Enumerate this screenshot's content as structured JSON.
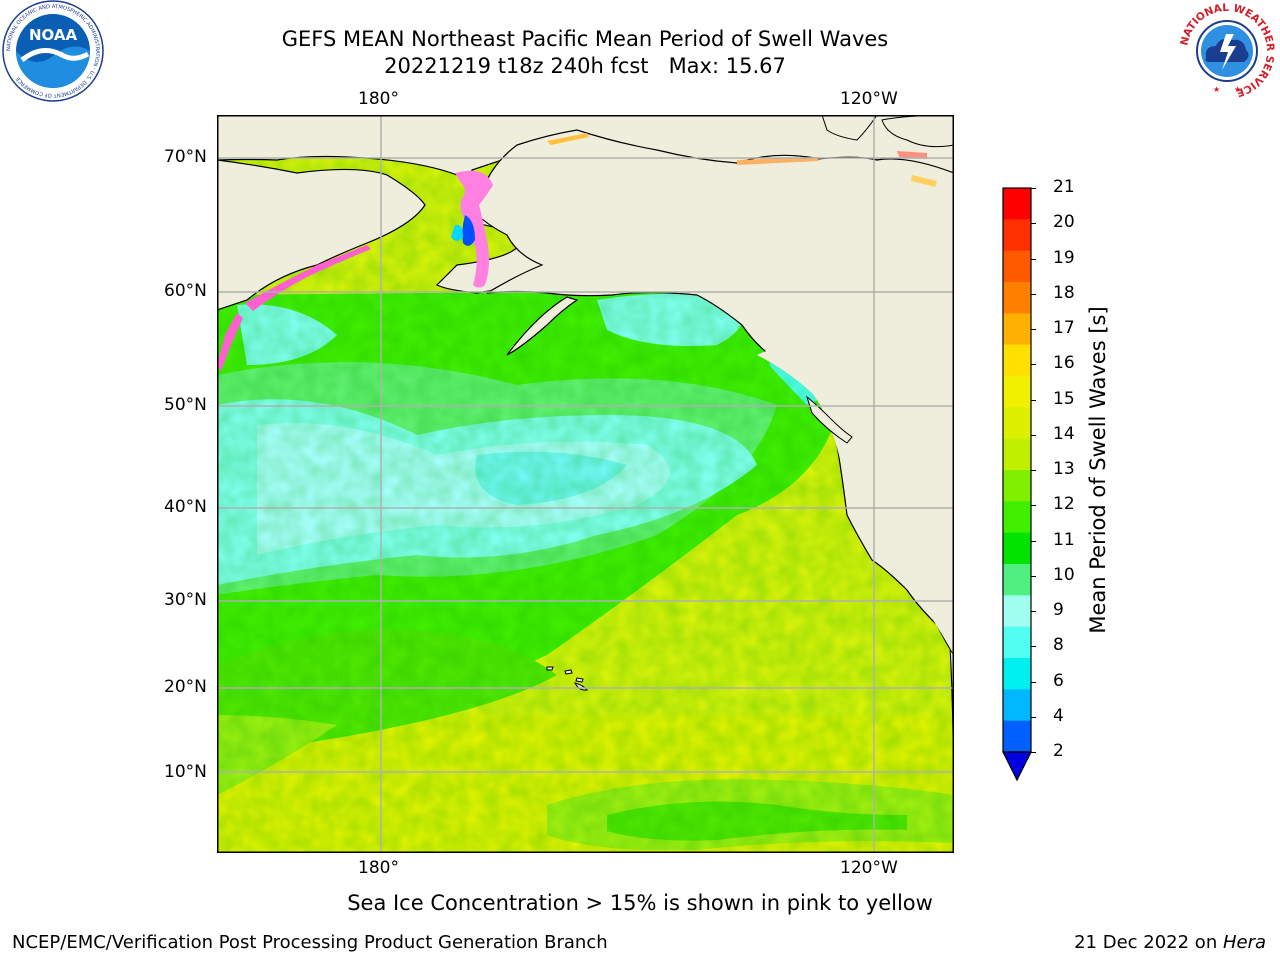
{
  "title": {
    "line1": "GEFS MEAN Northeast Pacific Mean Period of Swell Waves",
    "line2": "20221219 t18z 240h fcst   Max: 15.67"
  },
  "map": {
    "top_lon_labels": [
      "180°",
      "120°W"
    ],
    "bottom_lon_labels": [
      "180°",
      "120°W"
    ],
    "lat_labels": [
      "70°N",
      "60°N",
      "50°N",
      "40°N",
      "30°N",
      "20°N",
      "10°N"
    ]
  },
  "colorbar": {
    "label": "Mean Period of Swell Waves [s]",
    "ticks": [
      "21",
      "20",
      "19",
      "18",
      "17",
      "16",
      "15",
      "14",
      "13",
      "12",
      "11",
      "10",
      "9",
      "8",
      "6",
      "4",
      "2"
    ],
    "colors": [
      "#ff0000",
      "#ff3000",
      "#ff5a00",
      "#ff8000",
      "#ffb000",
      "#ffe000",
      "#f0f000",
      "#dcf000",
      "#c0f000",
      "#80f000",
      "#40ee00",
      "#00e400",
      "#50f080",
      "#a0fff0",
      "#50fff0",
      "#00f0f0",
      "#00b8ff",
      "#0060ff",
      "#0000e0"
    ]
  },
  "notes": {
    "sea_ice": "Sea Ice Concentration > 15% is shown in pink to yellow"
  },
  "footer": {
    "left": "NCEP/EMC/Verification Post Processing Product Generation Branch",
    "right_prefix": "21 Dec 2022 on ",
    "right_machine": "Hera"
  },
  "logos": {
    "noaa_text": "NOAA",
    "noaa_ring": "NATIONAL OCEANIC AND ATMOSPHERIC ADMINISTRATION · U.S. DEPARTMENT OF COMMERCE",
    "nws_ring": "NATIONAL WEATHER SERVICE"
  }
}
